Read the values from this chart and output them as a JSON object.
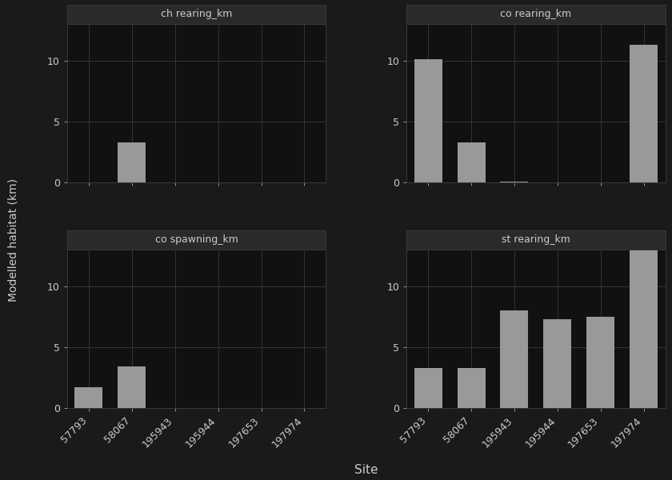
{
  "categories": [
    "57793",
    "58067",
    "195943",
    "195944",
    "197653",
    "197974"
  ],
  "subplots": [
    {
      "title": "ch rearing_km",
      "values": [
        0,
        3.3,
        0,
        0,
        0,
        0
      ]
    },
    {
      "title": "co rearing_km",
      "values": [
        10.1,
        3.3,
        0.07,
        0,
        0,
        11.3
      ]
    },
    {
      "title": "co spawning_km",
      "values": [
        1.7,
        3.4,
        0,
        0,
        0,
        0
      ]
    },
    {
      "title": "st rearing_km",
      "values": [
        3.3,
        3.3,
        8.0,
        7.3,
        7.5,
        13.0
      ]
    }
  ],
  "bar_color": "#999999",
  "background_color": "#1a1a1a",
  "plot_bg_color": "#111111",
  "grid_color": "#3a3a3a",
  "text_color": "#cccccc",
  "strip_bg_color": "#2a2a2a",
  "ylabel": "Modelled habitat (km)",
  "xlabel": "Site",
  "ylim": [
    0,
    13
  ],
  "yticks": [
    0,
    5,
    10
  ]
}
